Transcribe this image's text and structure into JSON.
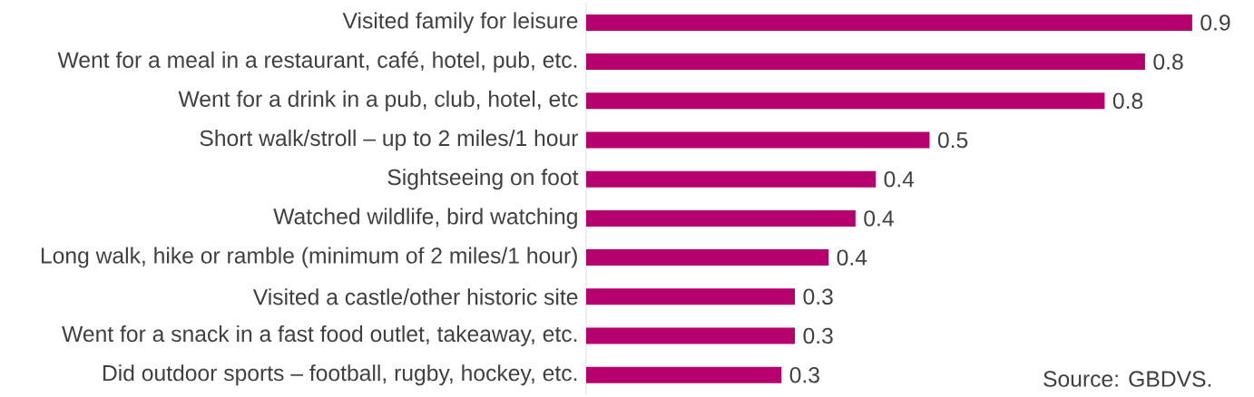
{
  "chart_data": {
    "type": "bar",
    "orientation": "horizontal",
    "categories": [
      "Visited family for leisure",
      "Went for a meal in a restaurant, café, hotel, pub, etc.",
      "Went for a drink in a pub, club, hotel, etc",
      "Short walk/stroll – up to 2 miles/1 hour",
      "Sightseeing on foot",
      "Watched wildlife, bird watching",
      "Long walk, hike or ramble (minimum of 2 miles/1 hour)",
      "Visited a castle/other historic site",
      "Went for a snack in a fast food outlet, takeaway, etc.",
      "Did outdoor sports – football, rugby, hockey, etc."
    ],
    "values": [
      0.9,
      0.83,
      0.77,
      0.51,
      0.43,
      0.4,
      0.36,
      0.31,
      0.31,
      0.29
    ],
    "value_labels": [
      "0.9",
      "0.8",
      "0.8",
      "0.5",
      "0.4",
      "0.4",
      "0.4",
      "0.3",
      "0.3",
      "0.3"
    ],
    "color": "#b5006e",
    "annotations": [
      "Source: GBDVS."
    ]
  }
}
